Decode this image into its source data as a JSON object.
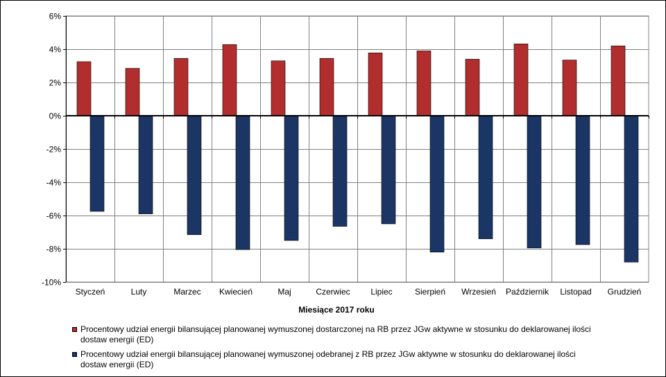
{
  "chart_data": {
    "type": "bar",
    "xlabel": "Miesiące 2017  roku",
    "ylabel": "",
    "ylim": [
      -10,
      6
    ],
    "yticks": [
      "6%",
      "4%",
      "2%",
      "0%",
      "-2%",
      "-4%",
      "-6%",
      "-8%",
      "-10%"
    ],
    "ytick_values": [
      6,
      4,
      2,
      0,
      -2,
      -4,
      -6,
      -8,
      -10
    ],
    "grid": true,
    "legend_position": "bottom",
    "categories": [
      "Styczeń",
      "Luty",
      "Marzec",
      "Kwiecień",
      "Maj",
      "Czerwiec",
      "Lipiec",
      "Sierpień",
      "Wrzesień",
      "Październik",
      "Listopad",
      "Grudzień"
    ],
    "series": [
      {
        "name": "Procentowy udział energii bilansującej planowanej wymuszonej dostarczonej na RB przez JGw aktywne w stosunku do deklarowanej ilości dostaw energii (ED)",
        "color": "#b22d2d",
        "values": [
          3.25,
          2.85,
          3.45,
          4.28,
          3.3,
          3.45,
          3.78,
          3.9,
          3.4,
          4.32,
          3.35,
          4.2
        ]
      },
      {
        "name": "Procentowy udział energii bilansującej planowanej wymuszonej odebranej z RB przez JGw aktywne w stosunku do deklarowanej ilości dostaw energii (ED)",
        "color": "#1b3564",
        "values": [
          -5.75,
          -5.9,
          -7.15,
          -8.05,
          -7.5,
          -6.65,
          -6.5,
          -8.2,
          -7.4,
          -7.95,
          -7.75,
          -8.8
        ]
      }
    ]
  }
}
